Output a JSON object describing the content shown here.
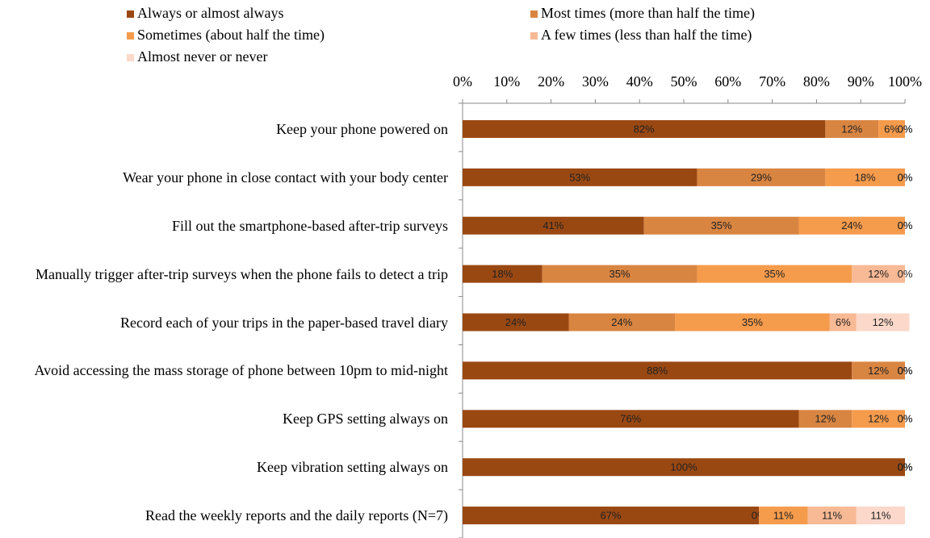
{
  "chart_data": {
    "type": "stacked-bar-horizontal",
    "categories": [
      "Keep your phone powered on",
      "Wear your phone in close contact with your body center",
      "Fill out the smartphone-based after-trip surveys",
      "Manually trigger after-trip surveys when the phone fails to detect a trip",
      "Record each of your trips in the paper-based travel diary",
      "Avoid accessing the mass storage of phone between 10pm to mid-night",
      "Keep GPS setting always on",
      "Keep vibration setting always on",
      "Read the weekly reports and the daily reports (N=7)"
    ],
    "series": [
      {
        "name": "Always or almost always",
        "color": "#9a4812",
        "values": [
          82,
          53,
          41,
          18,
          24,
          88,
          76,
          100,
          67
        ],
        "value_labels": [
          "82%",
          "53%",
          "41%",
          "18%",
          "24%",
          "88%",
          "76%",
          "100%",
          "67%"
        ]
      },
      {
        "name": "Most times (more than half the time)",
        "color": "#d98542",
        "values": [
          12,
          29,
          35,
          35,
          24,
          12,
          12,
          0,
          0
        ],
        "value_labels": [
          "12%",
          "29%",
          "35%",
          "35%",
          "24%",
          "12%",
          "12%",
          "0%",
          "0%"
        ]
      },
      {
        "name": "Sometimes (about half the time)",
        "color": "#f59b4c",
        "values": [
          6,
          18,
          24,
          35,
          35,
          0,
          12,
          0,
          11
        ],
        "value_labels": [
          "6%",
          "18%",
          "24%",
          "35%",
          "35%",
          "0%",
          "12%",
          "0%",
          "11%"
        ]
      },
      {
        "name": "A few times (less than half the time)",
        "color": "#f8b995",
        "values": [
          0,
          0,
          0,
          12,
          6,
          0,
          0,
          0,
          11
        ],
        "value_labels": [
          "0%",
          "0%",
          "0%",
          "12%",
          "6%",
          "0%",
          "0%",
          "0%",
          "11%"
        ]
      },
      {
        "name": "Almost never or never",
        "color": "#fbd8c9",
        "values": [
          0,
          0,
          0,
          0,
          12,
          0,
          0,
          0,
          11
        ],
        "value_labels": [
          "0%",
          "0%",
          "0%",
          "0%",
          "12%",
          "0%",
          "0%",
          "0%",
          "11%"
        ]
      }
    ],
    "xlim": [
      0,
      100
    ],
    "xticks": [
      {
        "value": 0,
        "label": "0%"
      },
      {
        "value": 10,
        "label": "10%"
      },
      {
        "value": 20,
        "label": "20%"
      },
      {
        "value": 30,
        "label": "30%"
      },
      {
        "value": 40,
        "label": "40%"
      },
      {
        "value": 50,
        "label": "50%"
      },
      {
        "value": 60,
        "label": "60%"
      },
      {
        "value": 70,
        "label": "70%"
      },
      {
        "value": 80,
        "label": "80%"
      },
      {
        "value": 90,
        "label": "90%"
      },
      {
        "value": 100,
        "label": "100%"
      }
    ],
    "xaxis_position": "top",
    "legend": "top",
    "grid": false
  }
}
